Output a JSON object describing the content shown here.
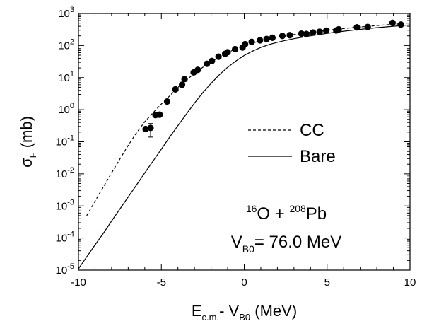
{
  "chart_data": {
    "type": "scatter",
    "title": "",
    "xlabel": {
      "main": "E",
      "sub1": "c.m.",
      "mid": "- V",
      "sub2": "B0",
      "tail": " (MeV)"
    },
    "ylabel": {
      "main": "σ",
      "sub": "F",
      "tail": " (mb)"
    },
    "xlim": [
      -10,
      10
    ],
    "ylim": [
      1e-05,
      1000
    ],
    "yscale": "log",
    "x_ticks": [
      -10,
      -5,
      0,
      5,
      10
    ],
    "x_tick_labels": [
      "-10",
      "-5",
      "0",
      "5",
      "10"
    ],
    "y_ticks": [
      1e-05,
      0.0001,
      0.001,
      0.01,
      0.1,
      1,
      10,
      100,
      1000
    ],
    "y_tick_labels": [
      {
        "base": "10",
        "exp": "-5"
      },
      {
        "base": "10",
        "exp": "-4"
      },
      {
        "base": "10",
        "exp": "-3"
      },
      {
        "base": "10",
        "exp": "-2"
      },
      {
        "base": "10",
        "exp": "-1"
      },
      {
        "base": "10",
        "exp": "0"
      },
      {
        "base": "10",
        "exp": "1"
      },
      {
        "base": "10",
        "exp": "2"
      },
      {
        "base": "10",
        "exp": "3"
      }
    ],
    "grid": false,
    "legend": {
      "position": "right-center"
    },
    "series": [
      {
        "name": "",
        "style": "markers",
        "color": "#000000",
        "points": [
          {
            "x": -5.95,
            "y": 0.25
          },
          {
            "x": -5.65,
            "y": 0.27,
            "err_low": 0.14,
            "err_high": 0.37
          },
          {
            "x": -5.35,
            "y": 0.68
          },
          {
            "x": -5.1,
            "y": 0.7
          },
          {
            "x": -4.65,
            "y": 1.8
          },
          {
            "x": -4.15,
            "y": 4.3
          },
          {
            "x": -3.75,
            "y": 6.0
          },
          {
            "x": -3.6,
            "y": 9.0
          },
          {
            "x": -3.05,
            "y": 14.5
          },
          {
            "x": -2.8,
            "y": 17.5
          },
          {
            "x": -2.25,
            "y": 27
          },
          {
            "x": -1.95,
            "y": 33
          },
          {
            "x": -1.55,
            "y": 45
          },
          {
            "x": -1.15,
            "y": 55
          },
          {
            "x": -1.0,
            "y": 62
          },
          {
            "x": -0.55,
            "y": 77
          },
          {
            "x": -0.1,
            "y": 87
          },
          {
            "x": 0.05,
            "y": 110
          },
          {
            "x": 0.45,
            "y": 130
          },
          {
            "x": 0.95,
            "y": 145
          },
          {
            "x": 1.35,
            "y": 160
          },
          {
            "x": 1.7,
            "y": 175
          },
          {
            "x": 2.3,
            "y": 200
          },
          {
            "x": 2.75,
            "y": 210
          },
          {
            "x": 3.45,
            "y": 235
          },
          {
            "x": 3.75,
            "y": 230
          },
          {
            "x": 4.15,
            "y": 255
          },
          {
            "x": 4.55,
            "y": 270
          },
          {
            "x": 4.95,
            "y": 290
          },
          {
            "x": 5.55,
            "y": 295
          },
          {
            "x": 5.7,
            "y": 320
          },
          {
            "x": 6.8,
            "y": 370
          },
          {
            "x": 7.45,
            "y": 380
          },
          {
            "x": 8.95,
            "y": 510
          },
          {
            "x": 9.45,
            "y": 450
          }
        ]
      },
      {
        "name": "CC",
        "style": "dashed",
        "color": "#000000",
        "x": [
          -9.5,
          -9.0,
          -8.5,
          -8.0,
          -7.5,
          -7.0,
          -6.5,
          -6.0,
          -5.5,
          -5.0,
          -4.5,
          -4.0,
          -3.5,
          -3.0,
          -2.5,
          -2.0,
          -1.5,
          -1.0,
          -0.5,
          0.0,
          0.5,
          1.0,
          1.5,
          2.0,
          3.0,
          4.0,
          5.0,
          6.0,
          7.0,
          8.0,
          9.0,
          9.8
        ],
        "y": [
          0.0005,
          0.0014,
          0.0039,
          0.0107,
          0.029,
          0.077,
          0.19,
          0.42,
          0.8,
          1.5,
          2.7,
          4.9,
          8.3,
          13.5,
          21,
          31,
          44,
          60,
          79,
          100,
          120,
          140,
          160,
          180,
          220,
          260,
          300,
          340,
          380,
          420,
          460,
          490
        ]
      },
      {
        "name": "Bare",
        "style": "solid",
        "color": "#000000",
        "x": [
          -10.0,
          -9.5,
          -9.0,
          -8.5,
          -8.0,
          -7.5,
          -7.0,
          -6.5,
          -6.0,
          -5.5,
          -5.0,
          -4.5,
          -4.0,
          -3.5,
          -3.0,
          -2.5,
          -2.0,
          -1.5,
          -1.0,
          -0.5,
          0.0,
          0.5,
          1.0,
          1.5,
          2.0,
          2.5,
          3.0,
          4.0,
          5.0,
          6.0,
          7.0,
          8.0,
          9.0,
          10.0
        ],
        "y": [
          1.1e-05,
          2.6e-05,
          6.1e-05,
          0.00014,
          0.00034,
          0.0008,
          0.0019,
          0.0045,
          0.0107,
          0.025,
          0.059,
          0.14,
          0.32,
          0.72,
          1.6,
          3.4,
          6.6,
          12.3,
          21,
          33,
          49,
          67,
          87,
          107,
          126,
          145,
          163,
          200,
          240,
          280,
          320,
          360,
          400,
          440
        ]
      }
    ],
    "annotations": [
      {
        "id": "reaction",
        "parts": [
          {
            "sup": "16"
          },
          {
            "text": "O + "
          },
          {
            "sup": "208"
          },
          {
            "text": "Pb"
          }
        ]
      },
      {
        "id": "barrier",
        "parts": [
          {
            "text": "V"
          },
          {
            "sub": "B0"
          },
          {
            "text": "= 76.0 MeV"
          }
        ]
      }
    ]
  }
}
